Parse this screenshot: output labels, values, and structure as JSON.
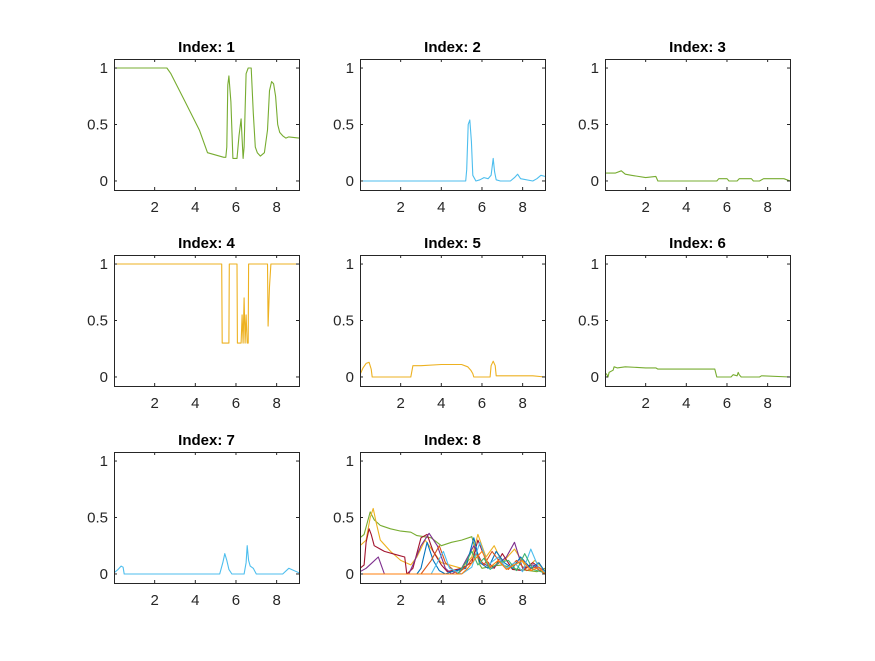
{
  "chart_data": [
    {
      "type": "line",
      "title": "Index: 1",
      "xlim": [
        0,
        9.1
      ],
      "ylim": [
        -0.08,
        1.08
      ],
      "xticks": [
        2,
        4,
        6,
        8
      ],
      "yticks": [
        0,
        0.5,
        1
      ],
      "xtick_labels": [
        "2",
        "4",
        "6",
        "8"
      ],
      "ytick_labels": [
        "0",
        "0.5",
        "1"
      ],
      "grid": false,
      "series": [
        {
          "color": "#77ac30",
          "x": [
            0,
            2.6,
            2.8,
            3.5,
            4.2,
            4.6,
            5.4,
            5.5,
            5.55,
            5.6,
            5.65,
            5.75,
            5.85,
            6.05,
            6.15,
            6.25,
            6.35,
            6.4,
            6.5,
            6.6,
            6.75,
            6.85,
            6.95,
            7.05,
            7.2,
            7.4,
            7.55,
            7.65,
            7.75,
            7.85,
            7.95,
            8.05,
            8.15,
            8.3,
            8.45,
            8.6,
            9.1
          ],
          "y": [
            1,
            1,
            0.95,
            0.7,
            0.45,
            0.25,
            0.21,
            0.21,
            0.3,
            0.85,
            0.93,
            0.7,
            0.2,
            0.2,
            0.4,
            0.55,
            0.2,
            0.3,
            0.95,
            1,
            1,
            0.6,
            0.3,
            0.25,
            0.22,
            0.25,
            0.45,
            0.8,
            0.88,
            0.86,
            0.75,
            0.5,
            0.43,
            0.4,
            0.38,
            0.39,
            0.38
          ]
        }
      ]
    },
    {
      "type": "line",
      "title": "Index: 2",
      "xlim": [
        0,
        9.1
      ],
      "ylim": [
        -0.08,
        1.08
      ],
      "xticks": [
        2,
        4,
        6,
        8
      ],
      "yticks": [
        0,
        0.5,
        1
      ],
      "xtick_labels": [
        "2",
        "4",
        "6",
        "8"
      ],
      "ytick_labels": [
        "0",
        "0.5",
        "1"
      ],
      "grid": false,
      "series": [
        {
          "color": "#4dbeee",
          "x": [
            0,
            5.2,
            5.25,
            5.32,
            5.4,
            5.48,
            5.55,
            5.7,
            5.9,
            6.1,
            6.3,
            6.45,
            6.55,
            6.62,
            6.7,
            6.9,
            7.4,
            7.6,
            7.75,
            7.9,
            8.5,
            8.7,
            8.9,
            9.1
          ],
          "y": [
            0,
            0,
            0.1,
            0.5,
            0.54,
            0.35,
            0.05,
            0,
            0.01,
            0.03,
            0.02,
            0.05,
            0.2,
            0.08,
            0.01,
            0,
            0,
            0.03,
            0.06,
            0.02,
            0,
            0.02,
            0.05,
            0.04
          ]
        }
      ]
    },
    {
      "type": "line",
      "title": "Index: 3",
      "xlim": [
        0,
        9.1
      ],
      "ylim": [
        -0.08,
        1.08
      ],
      "xticks": [
        2,
        4,
        6,
        8
      ],
      "yticks": [
        0,
        0.5,
        1
      ],
      "xtick_labels": [
        "2",
        "4",
        "6",
        "8"
      ],
      "ytick_labels": [
        "0",
        "0.5",
        "1"
      ],
      "grid": false,
      "series": [
        {
          "color": "#77ac30",
          "x": [
            0,
            0.2,
            0.5,
            0.8,
            1.0,
            1.3,
            2.0,
            2.5,
            2.6,
            5.5,
            5.6,
            6.0,
            6.1,
            6.5,
            6.6,
            7.2,
            7.3,
            7.6,
            7.8,
            8.3,
            8.8,
            9.1
          ],
          "y": [
            0.07,
            0.07,
            0.07,
            0.09,
            0.06,
            0.05,
            0.03,
            0.04,
            0,
            0,
            0.02,
            0.02,
            0,
            0,
            0.02,
            0.02,
            0,
            0,
            0.02,
            0.02,
            0.02,
            0
          ]
        }
      ]
    },
    {
      "type": "line",
      "title": "Index: 4",
      "xlim": [
        0,
        9.1
      ],
      "ylim": [
        -0.08,
        1.08
      ],
      "xticks": [
        2,
        4,
        6,
        8
      ],
      "yticks": [
        0,
        0.5,
        1
      ],
      "xtick_labels": [
        "2",
        "4",
        "6",
        "8"
      ],
      "ytick_labels": [
        "0",
        "0.5",
        "1"
      ],
      "grid": false,
      "series": [
        {
          "color": "#edb120",
          "x": [
            0,
            5.3,
            5.32,
            5.65,
            5.67,
            6.05,
            6.07,
            6.25,
            6.3,
            6.35,
            6.4,
            6.45,
            6.5,
            6.55,
            6.6,
            6.62,
            7.55,
            7.58,
            7.65,
            7.72,
            7.75,
            9.1
          ],
          "y": [
            1,
            1,
            0.3,
            0.3,
            1,
            1,
            0.3,
            0.3,
            0.55,
            0.3,
            0.7,
            0.3,
            0.55,
            0.3,
            0.3,
            1,
            1,
            0.45,
            0.8,
            1,
            1,
            1
          ]
        }
      ]
    },
    {
      "type": "line",
      "title": "Index: 5",
      "xlim": [
        0,
        9.1
      ],
      "ylim": [
        -0.08,
        1.08
      ],
      "xticks": [
        2,
        4,
        6,
        8
      ],
      "yticks": [
        0,
        0.5,
        1
      ],
      "xtick_labels": [
        "2",
        "4",
        "6",
        "8"
      ],
      "ytick_labels": [
        "0",
        "0.5",
        "1"
      ],
      "grid": false,
      "series": [
        {
          "color": "#edb120",
          "x": [
            0,
            0.15,
            0.3,
            0.45,
            0.55,
            0.6,
            2.5,
            2.6,
            3.0,
            4.0,
            5.0,
            5.3,
            5.45,
            5.55,
            5.6,
            6.4,
            6.45,
            6.55,
            6.65,
            6.7,
            8.5,
            9.1
          ],
          "y": [
            0.02,
            0.08,
            0.12,
            0.13,
            0.07,
            0,
            0,
            0.1,
            0.1,
            0.11,
            0.11,
            0.09,
            0.06,
            0.03,
            0,
            0,
            0.1,
            0.14,
            0.1,
            0.01,
            0.01,
            0
          ]
        }
      ]
    },
    {
      "type": "line",
      "title": "Index: 6",
      "xlim": [
        0,
        9.1
      ],
      "ylim": [
        -0.08,
        1.08
      ],
      "xticks": [
        2,
        4,
        6,
        8
      ],
      "yticks": [
        0,
        0.5,
        1
      ],
      "xtick_labels": [
        "2",
        "4",
        "6",
        "8"
      ],
      "ytick_labels": [
        "0",
        "0.5",
        "1"
      ],
      "grid": false,
      "series": [
        {
          "color": "#77ac30",
          "x": [
            0,
            0.05,
            0.1,
            0.15,
            0.2,
            0.4,
            0.45,
            0.6,
            1.0,
            2.0,
            2.5,
            2.6,
            5.4,
            5.5,
            6.2,
            6.3,
            6.5,
            6.55,
            6.6,
            6.7,
            7.6,
            7.7,
            9.1
          ],
          "y": [
            0.03,
            0.03,
            0.02,
            0,
            0.04,
            0.06,
            0.09,
            0.08,
            0.09,
            0.08,
            0.08,
            0.07,
            0.07,
            0,
            0,
            0.02,
            0.01,
            0.04,
            0.02,
            0,
            0,
            0.01,
            0
          ]
        }
      ]
    },
    {
      "type": "line",
      "title": "Index: 7",
      "xlim": [
        0,
        9.1
      ],
      "ylim": [
        -0.08,
        1.08
      ],
      "xticks": [
        2,
        4,
        6,
        8
      ],
      "yticks": [
        0,
        0.5,
        1
      ],
      "xtick_labels": [
        "2",
        "4",
        "6",
        "8"
      ],
      "ytick_labels": [
        "0",
        "0.5",
        "1"
      ],
      "grid": false,
      "series": [
        {
          "color": "#4dbeee",
          "x": [
            0,
            0.2,
            0.35,
            0.45,
            0.5,
            5.2,
            5.35,
            5.45,
            5.55,
            5.65,
            5.8,
            6.4,
            6.5,
            6.55,
            6.62,
            6.7,
            6.85,
            7.0,
            8.3,
            8.6,
            9.1
          ],
          "y": [
            0.01,
            0.04,
            0.07,
            0.06,
            0,
            0,
            0.1,
            0.18,
            0.12,
            0.04,
            0,
            0,
            0.1,
            0.25,
            0.12,
            0.07,
            0.05,
            0,
            0,
            0.05,
            0.01
          ]
        }
      ]
    },
    {
      "type": "line",
      "title": "Index: 8",
      "xlim": [
        0,
        9.1
      ],
      "ylim": [
        -0.08,
        1.08
      ],
      "xticks": [
        2,
        4,
        6,
        8
      ],
      "yticks": [
        0,
        0.5,
        1
      ],
      "xtick_labels": [
        "2",
        "4",
        "6",
        "8"
      ],
      "ytick_labels": [
        "0",
        "0.5",
        "1"
      ],
      "grid": false,
      "series": [
        {
          "color": "#77ac30",
          "x": [
            0,
            0.2,
            0.5,
            0.7,
            1.0,
            1.5,
            2.0,
            2.5,
            2.8,
            3.5,
            4.0,
            4.5,
            5.0,
            5.5,
            5.7,
            5.9,
            6.0,
            6.5,
            7.0,
            7.5,
            7.8,
            8.3,
            8.7,
            9.1
          ],
          "y": [
            0.32,
            0.35,
            0.55,
            0.48,
            0.43,
            0.4,
            0.38,
            0.37,
            0.34,
            0.32,
            0.25,
            0.28,
            0.3,
            0.33,
            0.2,
            0.08,
            0.05,
            0.07,
            0.08,
            0.05,
            0.04,
            0.03,
            0.02,
            0.05
          ]
        },
        {
          "color": "#edb120",
          "x": [
            0,
            0.3,
            0.5,
            0.65,
            0.8,
            1.0,
            1.5,
            2.0,
            2.5,
            2.8,
            3.2,
            3.6,
            4.0,
            5.0,
            5.5,
            5.8,
            6.2,
            6.6,
            7.0,
            7.6,
            8.2,
            8.6,
            9.1
          ],
          "y": [
            0.25,
            0.3,
            0.5,
            0.58,
            0.45,
            0.3,
            0.2,
            0.12,
            0.08,
            0.15,
            0.3,
            0.2,
            0.1,
            0.05,
            0.15,
            0.35,
            0.15,
            0.25,
            0.1,
            0.22,
            0.05,
            0.12,
            0.03
          ]
        },
        {
          "color": "#a2142f",
          "x": [
            0,
            0.2,
            0.3,
            0.45,
            0.55,
            0.7,
            1.2,
            1.8,
            2.2,
            2.3,
            2.6,
            3.0,
            3.3,
            3.6,
            4.0,
            4.3,
            5.0,
            5.5,
            5.8,
            6.2,
            6.6,
            7.0,
            7.5,
            8.0,
            8.5,
            9.1
          ],
          "y": [
            0.05,
            0.08,
            0.28,
            0.4,
            0.35,
            0.25,
            0.2,
            0.17,
            0.15,
            0,
            0.05,
            0.32,
            0.35,
            0.2,
            0.08,
            0.02,
            0.05,
            0.1,
            0.3,
            0.12,
            0.05,
            0.18,
            0.04,
            0.03,
            0.1,
            0.02
          ]
        },
        {
          "color": "#7e2f8e",
          "x": [
            0,
            0.3,
            0.6,
            0.9,
            1.2,
            2.4,
            2.6,
            3.0,
            3.4,
            3.8,
            4.2,
            4.5,
            5.0,
            5.6,
            6.0,
            6.5,
            7.2,
            7.6,
            8.0,
            8.5,
            9.1
          ],
          "y": [
            0.02,
            0.05,
            0.1,
            0.15,
            0,
            0,
            0.08,
            0.25,
            0.36,
            0.25,
            0.05,
            0,
            0.05,
            0.25,
            0.1,
            0.05,
            0.15,
            0.28,
            0.05,
            0.08,
            0.02
          ]
        },
        {
          "color": "#0072bd",
          "x": [
            0,
            2.8,
            3.0,
            3.3,
            3.6,
            3.9,
            4.2,
            4.5,
            5.2,
            5.6,
            5.9,
            6.3,
            6.7,
            7.1,
            7.5,
            7.9,
            8.4,
            8.8,
            9.1
          ],
          "y": [
            0,
            0,
            0.05,
            0.28,
            0.12,
            0.03,
            0,
            0.02,
            0.05,
            0.32,
            0.1,
            0.05,
            0.2,
            0.1,
            0.05,
            0.15,
            0.05,
            0.1,
            0.02
          ]
        },
        {
          "color": "#d95319",
          "x": [
            0,
            3.0,
            3.5,
            3.9,
            4.2,
            4.8,
            5.3,
            5.7,
            6.1,
            6.5,
            6.9,
            7.3,
            7.7,
            8.2,
            8.6,
            9.1
          ],
          "y": [
            0,
            0,
            0.12,
            0.25,
            0.1,
            0,
            0.08,
            0.18,
            0.08,
            0.2,
            0.1,
            0.04,
            0.12,
            0.03,
            0.06,
            0
          ]
        },
        {
          "color": "#4dbeee",
          "x": [
            0,
            3.5,
            3.8,
            4.1,
            4.4,
            5.0,
            5.5,
            5.9,
            6.3,
            6.8,
            7.2,
            7.6,
            8.0,
            8.4,
            8.8,
            9.1
          ],
          "y": [
            0,
            0,
            0.1,
            0.2,
            0.05,
            0,
            0.06,
            0.28,
            0.08,
            0.15,
            0.05,
            0.1,
            0.02,
            0.22,
            0.05,
            0.02
          ]
        },
        {
          "color": "#3cb371",
          "x": [
            0,
            4.8,
            5.2,
            5.5,
            5.8,
            6.1,
            6.4,
            6.8,
            7.3,
            7.7,
            8.1,
            8.5,
            9.1
          ],
          "y": [
            0,
            0,
            0.1,
            0.2,
            0.08,
            0.14,
            0.04,
            0.1,
            0.12,
            0.03,
            0.18,
            0.04,
            0.01
          ]
        },
        {
          "color": "#ff7f0e",
          "x": [
            0,
            5.0,
            5.3,
            5.6,
            6.0,
            6.4,
            6.8,
            7.2,
            7.6,
            8.0,
            8.4,
            8.8,
            9.1
          ],
          "y": [
            0,
            0,
            0.05,
            0.12,
            0.2,
            0.06,
            0.12,
            0.04,
            0.08,
            0.12,
            0.03,
            0.06,
            0
          ]
        }
      ]
    }
  ]
}
